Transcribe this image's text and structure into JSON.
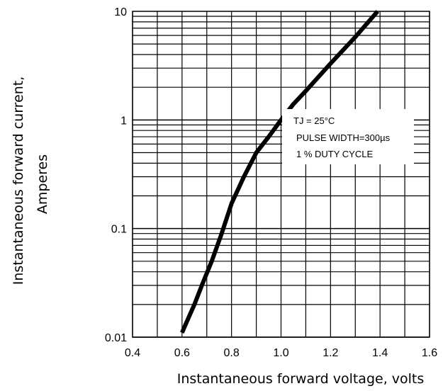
{
  "chart_data": {
    "type": "line",
    "xlabel": "Instantaneous forward voltage, volts",
    "ylabel": [
      "Instantaneous  forward current,",
      "Amperes"
    ],
    "xlim": [
      0.4,
      1.6
    ],
    "ylim": [
      0.01,
      10
    ],
    "y_scale": "log",
    "grid": true,
    "x_ticks": [
      "0.4",
      "0.6",
      "0.8",
      "1.0",
      "1.2",
      "1.4",
      "1.6"
    ],
    "y_ticks": [
      "0.01",
      "0.1",
      "1",
      "10"
    ],
    "annotations": [
      "TJ = 25°C",
      "PULSE WIDTH=300µs",
      "1 % DUTY CYCLE"
    ],
    "series": [
      {
        "color": "#000000",
        "x": [
          0.6,
          0.62,
          0.65,
          0.68,
          0.72,
          0.76,
          0.8,
          0.85,
          0.9,
          0.95,
          1.0,
          1.05,
          1.1,
          1.2,
          1.3,
          1.39
        ],
        "y": [
          0.011,
          0.014,
          0.02,
          0.03,
          0.05,
          0.09,
          0.17,
          0.3,
          0.5,
          0.7,
          1.0,
          1.4,
          1.85,
          3.3,
          5.8,
          10
        ]
      }
    ]
  }
}
